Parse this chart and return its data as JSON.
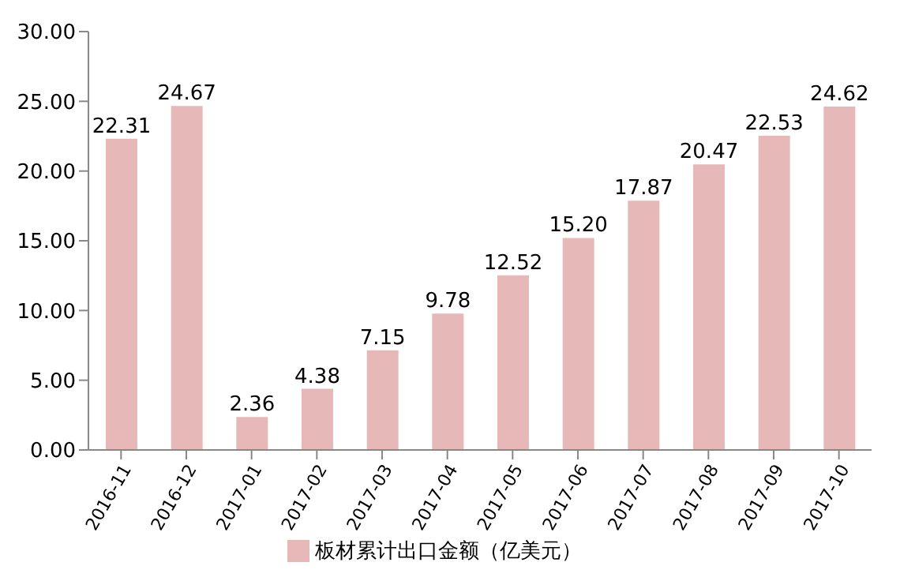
{
  "chart_data": {
    "type": "bar",
    "categories": [
      "2016-11",
      "2016-12",
      "2017-01",
      "2017-02",
      "2017-03",
      "2017-04",
      "2017-05",
      "2017-06",
      "2017-07",
      "2017-08",
      "2017-09",
      "2017-10"
    ],
    "series": [
      {
        "name": "板材累计出口金额（亿美元）",
        "color": "#e6b9b8",
        "values": [
          22.31,
          24.67,
          2.36,
          4.38,
          7.15,
          9.78,
          12.52,
          15.2,
          17.87,
          20.47,
          22.53,
          24.62
        ],
        "value_labels": [
          "22.31",
          "24.67",
          "2.36",
          "4.38",
          "7.15",
          "9.78",
          "12.52",
          "15.20",
          "17.87",
          "20.47",
          "22.53",
          "24.62"
        ]
      }
    ],
    "ylim": [
      0,
      30
    ],
    "yticks": [
      {
        "value": 0,
        "label": "0.00"
      },
      {
        "value": 5,
        "label": "5.00"
      },
      {
        "value": 10,
        "label": "10.00"
      },
      {
        "value": 15,
        "label": "15.00"
      },
      {
        "value": 20,
        "label": "20.00"
      },
      {
        "value": 25,
        "label": "25.00"
      },
      {
        "value": 30,
        "label": "30.00"
      }
    ],
    "grid": false,
    "legend": "bottom"
  }
}
